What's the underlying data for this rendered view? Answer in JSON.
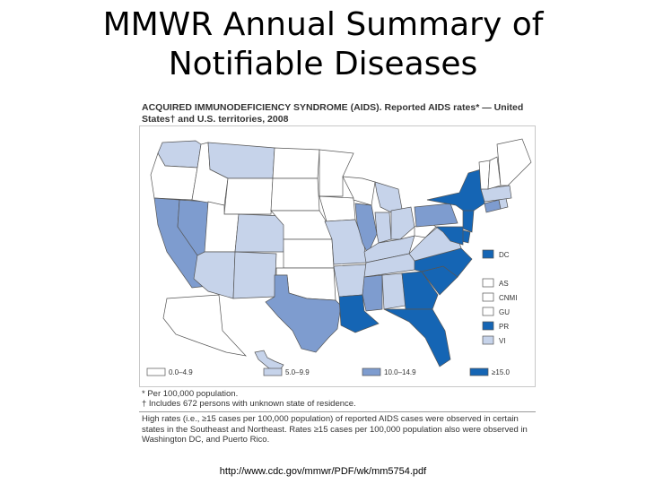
{
  "slide": {
    "title_line1": "MMWR Annual Summary of",
    "title_line2": "Notifiable Diseases",
    "source_url": "http://www.cdc.gov/mmwr/PDF/wk/mm5754.pdf"
  },
  "map": {
    "title_line1": "ACQUIRED IMMUNODEFICIENCY SYNDROME (AIDS). Reported AIDS rates* — United",
    "title_line2": "States† and U.S. territories, 2008",
    "colors": {
      "c0": "#ffffff",
      "c1": "#c6d3ea",
      "c2": "#7e9ccf",
      "c3": "#1565b4",
      "border": "#555555"
    },
    "legend": [
      {
        "label": "0.0–4.9",
        "class": "c0"
      },
      {
        "label": "5.0–9.9",
        "class": "c1"
      },
      {
        "label": "10.0–14.9",
        "class": "c2"
      },
      {
        "label": "≥15.0",
        "class": "c3"
      }
    ],
    "territories": [
      {
        "label": "DC",
        "class": "c3"
      },
      {
        "label": "AS",
        "class": "c0"
      },
      {
        "label": "CNMI",
        "class": "c0"
      },
      {
        "label": "GU",
        "class": "c0"
      },
      {
        "label": "PR",
        "class": "c3"
      },
      {
        "label": "VI",
        "class": "c1"
      }
    ],
    "states": [
      {
        "name": "WA",
        "class": "c1"
      },
      {
        "name": "OR",
        "class": "c0"
      },
      {
        "name": "CA",
        "class": "c2"
      },
      {
        "name": "NV",
        "class": "c2"
      },
      {
        "name": "ID",
        "class": "c0"
      },
      {
        "name": "MT",
        "class": "c1"
      },
      {
        "name": "WY",
        "class": "c0"
      },
      {
        "name": "UT",
        "class": "c0"
      },
      {
        "name": "AZ",
        "class": "c1"
      },
      {
        "name": "CO",
        "class": "c1"
      },
      {
        "name": "NM",
        "class": "c1"
      },
      {
        "name": "ND",
        "class": "c0"
      },
      {
        "name": "SD",
        "class": "c0"
      },
      {
        "name": "NE",
        "class": "c0"
      },
      {
        "name": "KS",
        "class": "c0"
      },
      {
        "name": "OK",
        "class": "c0"
      },
      {
        "name": "TX",
        "class": "c2"
      },
      {
        "name": "MN",
        "class": "c0"
      },
      {
        "name": "IA",
        "class": "c0"
      },
      {
        "name": "MO",
        "class": "c1"
      },
      {
        "name": "AR",
        "class": "c1"
      },
      {
        "name": "LA",
        "class": "c3"
      },
      {
        "name": "WI",
        "class": "c0"
      },
      {
        "name": "IL",
        "class": "c2"
      },
      {
        "name": "MI",
        "class": "c1"
      },
      {
        "name": "IN",
        "class": "c1"
      },
      {
        "name": "OH",
        "class": "c1"
      },
      {
        "name": "KY",
        "class": "c1"
      },
      {
        "name": "TN",
        "class": "c1"
      },
      {
        "name": "MS",
        "class": "c2"
      },
      {
        "name": "AL",
        "class": "c1"
      },
      {
        "name": "GA",
        "class": "c3"
      },
      {
        "name": "FL",
        "class": "c3"
      },
      {
        "name": "SC",
        "class": "c3"
      },
      {
        "name": "NC",
        "class": "c3"
      },
      {
        "name": "VA",
        "class": "c1"
      },
      {
        "name": "WV",
        "class": "c0"
      },
      {
        "name": "PA",
        "class": "c2"
      },
      {
        "name": "NY",
        "class": "c3"
      },
      {
        "name": "NJ",
        "class": "c3"
      },
      {
        "name": "DE",
        "class": "c3"
      },
      {
        "name": "MD",
        "class": "c3"
      },
      {
        "name": "CT",
        "class": "c2"
      },
      {
        "name": "RI",
        "class": "c1"
      },
      {
        "name": "MA",
        "class": "c1"
      },
      {
        "name": "VT",
        "class": "c0"
      },
      {
        "name": "NH",
        "class": "c0"
      },
      {
        "name": "ME",
        "class": "c0"
      },
      {
        "name": "AK",
        "class": "c0"
      },
      {
        "name": "HI",
        "class": "c1"
      }
    ]
  },
  "notes": {
    "footnote1": "* Per 100,000 population.",
    "footnote2": "† Includes 672 persons with unknown state of residence.",
    "summary_line1": "High rates (i.e., ≥15 cases per 100,000 population) of reported AIDS cases were observed in certain",
    "summary_line2": "states in the Southeast and Northeast. Rates ≥15 cases per 100,000 population also were observed in",
    "summary_line3": "Washington DC, and Puerto Rico."
  }
}
